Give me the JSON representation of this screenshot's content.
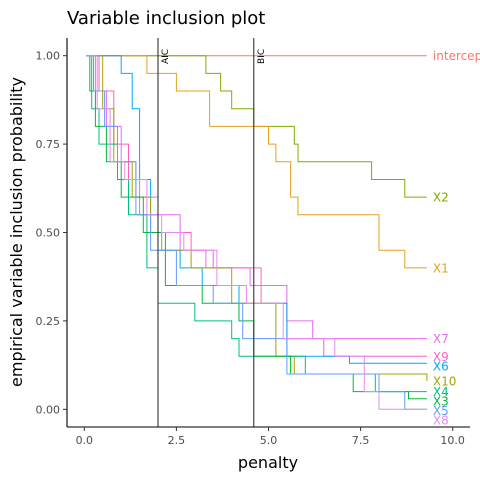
{
  "chart_data": {
    "type": "line",
    "title": "Variable inclusion plot",
    "xlabel": "penalty",
    "ylabel": "empirical variable inclusion probability",
    "xlim": [
      -0.47,
      10.47
    ],
    "ylim": [
      -0.05,
      1.05
    ],
    "x_ticks": [
      0.0,
      2.5,
      5.0,
      7.5,
      10.0
    ],
    "x_tick_labels": [
      "0.0",
      "2.5",
      "5.0",
      "7.5",
      "10.0"
    ],
    "y_ticks": [
      0.0,
      0.25,
      0.5,
      0.75,
      1.0
    ],
    "y_tick_labels": [
      "0.00",
      "0.25",
      "0.50",
      "0.75",
      "1.00"
    ],
    "grid": false,
    "vertical_lines": [
      {
        "label": "AIC",
        "x": 2.0,
        "color": "#333333"
      },
      {
        "label": "BIC",
        "x": 4.6,
        "color": "#333333"
      }
    ],
    "series": [
      {
        "name": "intercep",
        "color": "#F8766D",
        "end_value": 1.0,
        "points": [
          [
            0.05,
            1.0
          ],
          [
            9.3,
            1.0
          ]
        ]
      },
      {
        "name": "X2",
        "color": "#7CAE00",
        "end_value": 0.6,
        "points": [
          [
            0.05,
            1.0
          ],
          [
            3.3,
            1.0
          ],
          [
            3.3,
            0.95
          ],
          [
            3.7,
            0.95
          ],
          [
            3.7,
            0.9
          ],
          [
            4.0,
            0.9
          ],
          [
            4.0,
            0.85
          ],
          [
            4.6,
            0.85
          ],
          [
            4.6,
            0.8
          ],
          [
            5.7,
            0.8
          ],
          [
            5.7,
            0.75
          ],
          [
            5.8,
            0.75
          ],
          [
            5.8,
            0.7
          ],
          [
            7.8,
            0.7
          ],
          [
            7.8,
            0.65
          ],
          [
            8.7,
            0.65
          ],
          [
            8.7,
            0.6
          ],
          [
            9.3,
            0.6
          ]
        ]
      },
      {
        "name": "X1",
        "color": "#E5A020",
        "end_value": 0.4,
        "points": [
          [
            0.05,
            1.0
          ],
          [
            1.7,
            1.0
          ],
          [
            1.7,
            0.95
          ],
          [
            2.5,
            0.95
          ],
          [
            2.5,
            0.9
          ],
          [
            3.4,
            0.9
          ],
          [
            3.4,
            0.8
          ],
          [
            5.0,
            0.8
          ],
          [
            5.0,
            0.75
          ],
          [
            5.2,
            0.75
          ],
          [
            5.2,
            0.7
          ],
          [
            5.6,
            0.7
          ],
          [
            5.6,
            0.6
          ],
          [
            5.8,
            0.6
          ],
          [
            5.8,
            0.55
          ],
          [
            8.0,
            0.55
          ],
          [
            8.0,
            0.45
          ],
          [
            8.7,
            0.45
          ],
          [
            8.7,
            0.4
          ],
          [
            9.3,
            0.4
          ]
        ]
      },
      {
        "name": "X7",
        "color": "#E76BF3",
        "end_value": 0.2,
        "points": [
          [
            0.05,
            1.0
          ],
          [
            0.3,
            1.0
          ],
          [
            0.3,
            0.9
          ],
          [
            0.6,
            0.9
          ],
          [
            0.6,
            0.8
          ],
          [
            1.0,
            0.8
          ],
          [
            1.0,
            0.7
          ],
          [
            1.4,
            0.7
          ],
          [
            1.4,
            0.6
          ],
          [
            2.0,
            0.6
          ],
          [
            2.0,
            0.55
          ],
          [
            2.6,
            0.55
          ],
          [
            2.6,
            0.45
          ],
          [
            3.3,
            0.45
          ],
          [
            3.3,
            0.4
          ],
          [
            4.5,
            0.4
          ],
          [
            4.5,
            0.35
          ],
          [
            5.5,
            0.35
          ],
          [
            5.5,
            0.25
          ],
          [
            6.2,
            0.25
          ],
          [
            6.2,
            0.2
          ],
          [
            9.3,
            0.2
          ]
        ]
      },
      {
        "name": "X9",
        "color": "#FF61C3",
        "end_value": 0.15,
        "points": [
          [
            0.05,
            1.0
          ],
          [
            0.4,
            1.0
          ],
          [
            0.4,
            0.9
          ],
          [
            0.8,
            0.9
          ],
          [
            0.8,
            0.75
          ],
          [
            1.2,
            0.75
          ],
          [
            1.2,
            0.65
          ],
          [
            1.5,
            0.65
          ],
          [
            1.5,
            0.55
          ],
          [
            2.0,
            0.55
          ],
          [
            2.0,
            0.5
          ],
          [
            2.9,
            0.5
          ],
          [
            2.9,
            0.45
          ],
          [
            3.5,
            0.45
          ],
          [
            3.5,
            0.4
          ],
          [
            4.8,
            0.4
          ],
          [
            4.8,
            0.3
          ],
          [
            5.5,
            0.3
          ],
          [
            5.5,
            0.2
          ],
          [
            6.5,
            0.2
          ],
          [
            6.5,
            0.15
          ],
          [
            9.3,
            0.15
          ]
        ]
      },
      {
        "name": "X6",
        "color": "#00A9FF",
        "end_value": 0.13,
        "points": [
          [
            0.05,
            1.0
          ],
          [
            1.0,
            1.0
          ],
          [
            1.0,
            0.95
          ],
          [
            1.3,
            0.95
          ],
          [
            1.3,
            0.85
          ],
          [
            1.5,
            0.85
          ],
          [
            1.5,
            0.65
          ],
          [
            1.8,
            0.65
          ],
          [
            1.8,
            0.55
          ],
          [
            2.0,
            0.55
          ],
          [
            2.0,
            0.45
          ],
          [
            2.6,
            0.45
          ],
          [
            2.6,
            0.4
          ],
          [
            3.2,
            0.4
          ],
          [
            3.2,
            0.35
          ],
          [
            4.2,
            0.35
          ],
          [
            4.2,
            0.3
          ],
          [
            5.5,
            0.3
          ],
          [
            5.5,
            0.15
          ],
          [
            7.2,
            0.15
          ],
          [
            7.2,
            0.13
          ],
          [
            9.3,
            0.13
          ]
        ]
      },
      {
        "name": "X10",
        "color": "#A3A500",
        "end_value": 0.08,
        "points": [
          [
            0.05,
            1.0
          ],
          [
            0.5,
            1.0
          ],
          [
            0.5,
            0.85
          ],
          [
            0.8,
            0.85
          ],
          [
            0.8,
            0.7
          ],
          [
            1.3,
            0.7
          ],
          [
            1.3,
            0.6
          ],
          [
            1.8,
            0.6
          ],
          [
            1.8,
            0.5
          ],
          [
            2.1,
            0.5
          ],
          [
            2.1,
            0.45
          ],
          [
            2.9,
            0.45
          ],
          [
            2.9,
            0.4
          ],
          [
            4.0,
            0.4
          ],
          [
            4.0,
            0.3
          ],
          [
            5.2,
            0.3
          ],
          [
            5.2,
            0.15
          ],
          [
            5.7,
            0.15
          ],
          [
            5.7,
            0.1
          ],
          [
            9.3,
            0.1
          ],
          [
            9.3,
            0.08
          ]
        ]
      },
      {
        "name": "X4",
        "color": "#00BF7D",
        "end_value": 0.05,
        "points": [
          [
            0.05,
            1.0
          ],
          [
            0.2,
            1.0
          ],
          [
            0.2,
            0.85
          ],
          [
            0.4,
            0.85
          ],
          [
            0.4,
            0.75
          ],
          [
            0.9,
            0.75
          ],
          [
            0.9,
            0.65
          ],
          [
            1.2,
            0.65
          ],
          [
            1.2,
            0.55
          ],
          [
            1.7,
            0.55
          ],
          [
            1.7,
            0.4
          ],
          [
            2.0,
            0.4
          ],
          [
            2.0,
            0.3
          ],
          [
            3.0,
            0.3
          ],
          [
            3.0,
            0.25
          ],
          [
            4.0,
            0.25
          ],
          [
            4.0,
            0.2
          ],
          [
            4.2,
            0.2
          ],
          [
            4.2,
            0.15
          ],
          [
            6.0,
            0.15
          ],
          [
            6.0,
            0.1
          ],
          [
            7.9,
            0.1
          ],
          [
            7.9,
            0.05
          ],
          [
            9.3,
            0.05
          ]
        ]
      },
      {
        "name": "X3",
        "color": "#00BA38",
        "end_value": 0.03,
        "points": [
          [
            0.05,
            1.0
          ],
          [
            0.15,
            1.0
          ],
          [
            0.15,
            0.9
          ],
          [
            0.3,
            0.9
          ],
          [
            0.3,
            0.8
          ],
          [
            0.6,
            0.8
          ],
          [
            0.6,
            0.7
          ],
          [
            1.0,
            0.7
          ],
          [
            1.0,
            0.6
          ],
          [
            1.6,
            0.6
          ],
          [
            1.6,
            0.5
          ],
          [
            2.2,
            0.5
          ],
          [
            2.2,
            0.35
          ],
          [
            3.2,
            0.35
          ],
          [
            3.2,
            0.3
          ],
          [
            4.2,
            0.3
          ],
          [
            4.2,
            0.25
          ],
          [
            4.6,
            0.25
          ],
          [
            4.6,
            0.15
          ],
          [
            5.6,
            0.15
          ],
          [
            5.6,
            0.1
          ],
          [
            7.3,
            0.1
          ],
          [
            7.3,
            0.05
          ],
          [
            8.8,
            0.05
          ],
          [
            8.8,
            0.03
          ],
          [
            9.3,
            0.03
          ]
        ]
      },
      {
        "name": "X5",
        "color": "#619CFF",
        "end_value": 0.0,
        "points": [
          [
            0.05,
            1.0
          ],
          [
            0.25,
            1.0
          ],
          [
            0.25,
            0.9
          ],
          [
            0.55,
            0.9
          ],
          [
            0.55,
            0.8
          ],
          [
            0.9,
            0.8
          ],
          [
            0.9,
            0.7
          ],
          [
            1.4,
            0.7
          ],
          [
            1.4,
            0.55
          ],
          [
            1.8,
            0.55
          ],
          [
            1.8,
            0.45
          ],
          [
            2.5,
            0.45
          ],
          [
            2.5,
            0.35
          ],
          [
            3.5,
            0.35
          ],
          [
            3.5,
            0.3
          ],
          [
            4.3,
            0.3
          ],
          [
            4.3,
            0.2
          ],
          [
            5.5,
            0.2
          ],
          [
            5.5,
            0.1
          ],
          [
            8.0,
            0.1
          ],
          [
            8.0,
            0.05
          ],
          [
            8.7,
            0.05
          ],
          [
            8.7,
            0.0
          ],
          [
            9.3,
            0.0
          ]
        ]
      },
      {
        "name": "X8",
        "color": "#E68AF0",
        "end_value": -0.02,
        "points": [
          [
            0.05,
            1.0
          ],
          [
            0.35,
            1.0
          ],
          [
            0.35,
            0.85
          ],
          [
            0.7,
            0.85
          ],
          [
            0.7,
            0.7
          ],
          [
            1.1,
            0.7
          ],
          [
            1.1,
            0.65
          ],
          [
            1.7,
            0.65
          ],
          [
            1.7,
            0.55
          ],
          [
            2.1,
            0.55
          ],
          [
            2.1,
            0.5
          ],
          [
            2.7,
            0.5
          ],
          [
            2.7,
            0.45
          ],
          [
            3.6,
            0.45
          ],
          [
            3.6,
            0.35
          ],
          [
            4.4,
            0.35
          ],
          [
            4.4,
            0.3
          ],
          [
            5.4,
            0.3
          ],
          [
            5.4,
            0.2
          ],
          [
            6.8,
            0.2
          ],
          [
            6.8,
            0.15
          ],
          [
            7.6,
            0.15
          ],
          [
            7.6,
            0.05
          ],
          [
            8.0,
            0.05
          ],
          [
            8.0,
            0.0
          ],
          [
            9.3,
            0.0
          ]
        ]
      }
    ]
  }
}
